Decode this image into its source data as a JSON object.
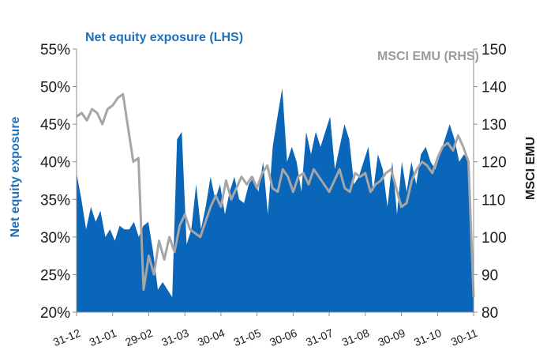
{
  "chart_data": {
    "type": "area",
    "title": "",
    "series": [
      {
        "name": "Net equity exposure (LHS)",
        "axis": "left",
        "kind": "area",
        "color": "#0a66b8",
        "values": [
          38.5,
          35,
          31,
          34,
          32,
          33.5,
          30,
          31,
          29.5,
          31.5,
          31,
          31,
          32,
          30,
          31.5,
          32,
          28,
          23,
          24,
          23,
          22,
          43,
          44,
          29,
          31,
          37,
          31,
          34,
          38,
          35,
          37,
          33,
          36,
          38,
          35,
          34.5,
          37,
          38,
          36,
          40,
          33,
          42,
          46,
          49.8,
          40,
          42,
          40,
          36,
          44,
          41,
          44,
          42,
          44,
          46,
          39,
          42,
          45,
          43,
          37,
          38,
          40,
          42,
          36,
          41,
          39,
          34,
          40,
          33,
          40,
          36,
          40,
          37,
          41,
          42,
          40,
          39,
          41,
          43,
          45,
          43,
          40,
          41,
          40,
          22
        ],
        "yrange": [
          20,
          55
        ]
      },
      {
        "name": "MSCI EMU (RHS)",
        "axis": "right",
        "kind": "line",
        "color": "#a6a6a6",
        "values": [
          132,
          133,
          131,
          134,
          133,
          130,
          134,
          135,
          137,
          138,
          129,
          120,
          121,
          86,
          95,
          90,
          99,
          94,
          100,
          96,
          103,
          106,
          102,
          101,
          100,
          104,
          108,
          111,
          108,
          115,
          110,
          113,
          116,
          114,
          116,
          113,
          117,
          119,
          113,
          112,
          118,
          116,
          112,
          116,
          117,
          114,
          118,
          116,
          114,
          112,
          115,
          118,
          113,
          112,
          117,
          116,
          117,
          112,
          114,
          115,
          117,
          118,
          113,
          108,
          109,
          115,
          118,
          120,
          119,
          117,
          121,
          124,
          125,
          123,
          127,
          124,
          120,
          84
        ],
        "yrange": [
          80,
          150
        ]
      }
    ],
    "x_tick_labels": [
      "31-12",
      "31-01",
      "29-02",
      "31-03",
      "30-04",
      "31-05",
      "30-06",
      "31-07",
      "31-08",
      "30-09",
      "31-10",
      "30-11"
    ],
    "y_left_ticks": [
      "20%",
      "25%",
      "30%",
      "35%",
      "40%",
      "45%",
      "50%",
      "55%"
    ],
    "y_right_ticks": [
      "80",
      "90",
      "100",
      "110",
      "120",
      "130",
      "140",
      "150"
    ],
    "ylabel_left": "Net equity exposure",
    "ylabel_right": "MSCI EMU",
    "ylim_left": [
      20,
      55
    ],
    "ylim_right": [
      80,
      150
    ],
    "grid": false,
    "legend": "inline labels at top"
  }
}
